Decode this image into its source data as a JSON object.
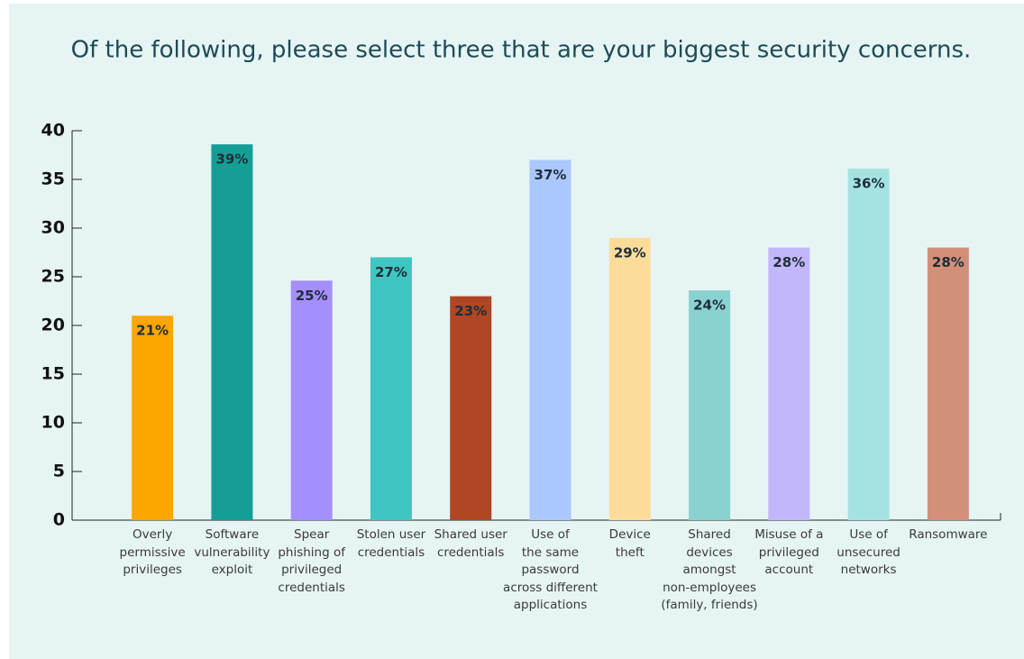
{
  "chart_data": {
    "type": "bar",
    "title": "Of the following, please select three that are your biggest security concerns.",
    "categories": [
      "Overly\npermissive\nprivileges",
      "Software\nvulnerability\nexploit",
      "Spear\nphishing of\nprivileged\ncredentials",
      "Stolen user\ncredentials",
      "Shared user\ncredentials",
      "Use of\nthe same\npassword\nacross different\napplications",
      "Device\ntheft",
      "Shared\ndevices\namongst\nnon-employees\n(family, friends)",
      "Misuse of a\nprivileged\naccount",
      "Use of\nunsecured\nnetworks",
      "Ransomware"
    ],
    "values": [
      21,
      38.6,
      24.6,
      27,
      23,
      37,
      29,
      23.6,
      28,
      36.1,
      28
    ],
    "value_labels": [
      "21%",
      "39%",
      "25%",
      "27%",
      "23%",
      "37%",
      "29%",
      "24%",
      "28%",
      "36%",
      "28%"
    ],
    "colors": [
      "#fca600",
      "#149e96",
      "#a58ffe",
      "#40c6c0",
      "#b04623",
      "#aac8fd",
      "#fddc9a",
      "#8ad2cf",
      "#c3b7fc",
      "#a5e3e1",
      "#d39079"
    ],
    "ylim": [
      0,
      40
    ],
    "yticks": [
      0,
      5,
      10,
      15,
      20,
      25,
      30,
      35,
      40
    ],
    "grid": false
  }
}
